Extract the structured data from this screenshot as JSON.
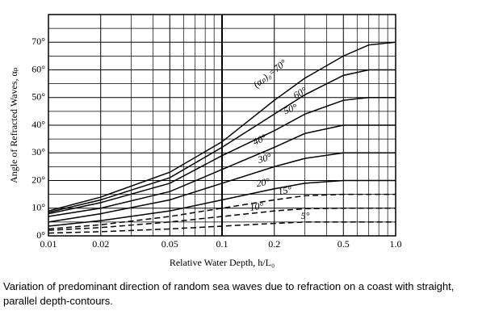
{
  "chart_data": {
    "type": "line",
    "xlabel": "Relative Water Depth, h/L₀",
    "ylabel": "Angle of Refracted Waves, αₚ",
    "caption": "Variation of predominant direction of random sea waves due to refraction on a coast with straight, parallel depth-contours.",
    "log_x": true,
    "grid": true,
    "color": "#000000",
    "x": [
      0.01,
      0.02,
      0.05,
      0.1,
      0.2,
      0.3,
      0.5,
      0.7,
      1.0
    ],
    "series": [
      {
        "name": "(αₚ)₀=70°",
        "dashed": false,
        "values": [
          9,
          14,
          23,
          34,
          49,
          57,
          65,
          69,
          70
        ]
      },
      {
        "name": "60°",
        "dashed": false,
        "values": [
          8.5,
          13,
          21,
          32,
          44,
          51,
          58,
          60,
          60
        ]
      },
      {
        "name": "50°",
        "dashed": false,
        "values": [
          8,
          12,
          19,
          29,
          38,
          44,
          49,
          50,
          50
        ]
      },
      {
        "name": "40°",
        "dashed": false,
        "values": [
          7,
          10,
          16,
          24,
          32,
          37,
          40,
          40,
          40
        ]
      },
      {
        "name": "30°",
        "dashed": false,
        "values": [
          5,
          8,
          13,
          19,
          25,
          28,
          30,
          30,
          30
        ]
      },
      {
        "name": "20°",
        "dashed": false,
        "values": [
          3.5,
          5.5,
          9,
          13,
          17,
          19,
          20,
          20,
          20
        ]
      },
      {
        "name": "15°",
        "dashed": true,
        "values": [
          2.5,
          4,
          7,
          10,
          13,
          14.5,
          15,
          15,
          15
        ]
      },
      {
        "name": "10°",
        "dashed": true,
        "values": [
          2,
          3,
          5,
          7,
          9,
          9.8,
          10,
          10,
          10
        ]
      },
      {
        "name": "5°",
        "dashed": true,
        "values": [
          1,
          1.5,
          2.5,
          3.5,
          4.5,
          5,
          5,
          5,
          5
        ]
      }
    ],
    "xlim": [
      0.01,
      1.0
    ],
    "ylim": [
      0,
      80
    ],
    "xticks": [
      0.01,
      0.02,
      0.05,
      0.1,
      0.2,
      0.5,
      {
        "value": 1.0,
        "label": "1.0"
      }
    ],
    "minor_xgrid": [
      0.03,
      0.04,
      0.06,
      0.07,
      0.08,
      0.09,
      0.3,
      0.4,
      0.6,
      0.7,
      0.8,
      0.9
    ],
    "minor_ygrid": [
      5,
      15,
      25,
      35,
      45,
      55,
      65,
      75
    ],
    "yticks": [
      {
        "value": 0,
        "label": "0°"
      },
      {
        "value": 10,
        "label": "10°"
      },
      {
        "value": 20,
        "label": "20°"
      },
      {
        "value": 30,
        "label": "30°"
      },
      {
        "value": 40,
        "label": "40°"
      },
      {
        "value": 50,
        "label": "50°"
      },
      {
        "value": 60,
        "label": "60°"
      },
      {
        "value": 70,
        "label": "70°"
      }
    ]
  }
}
